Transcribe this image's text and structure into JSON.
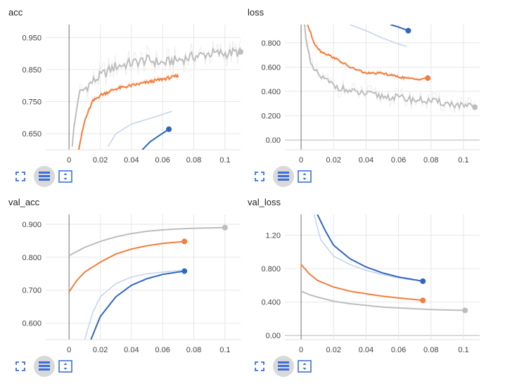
{
  "chart_data": [
    {
      "type": "line",
      "title": "acc",
      "xlim": [
        -0.015,
        0.11
      ],
      "ylim": [
        0.6,
        0.99
      ],
      "xticks": [
        0,
        0.02,
        0.04,
        0.06,
        0.08,
        0.1
      ],
      "xtick_labels": [
        "0",
        "0.02",
        "0.04",
        "0.06",
        "0.08",
        "0.1"
      ],
      "yticks": [
        0.65,
        0.75,
        0.85,
        0.95
      ],
      "ytick_labels": [
        "0.650",
        "0.750",
        "0.850",
        "0.950"
      ],
      "series": [
        {
          "color": "#bdbdbd",
          "noise": 0.045,
          "end_marker": true,
          "x": [
            0.002,
            0.006,
            0.012,
            0.02,
            0.03,
            0.04,
            0.05,
            0.06,
            0.07,
            0.08,
            0.09,
            0.1,
            0.11
          ],
          "y": [
            0.62,
            0.77,
            0.8,
            0.83,
            0.86,
            0.87,
            0.88,
            0.87,
            0.88,
            0.89,
            0.9,
            0.9,
            0.905
          ]
        },
        {
          "color": "#f57c3b",
          "noise": 0.012,
          "end_marker": false,
          "x": [
            0.006,
            0.01,
            0.015,
            0.02,
            0.025,
            0.03,
            0.04,
            0.05,
            0.06,
            0.07
          ],
          "y": [
            0.6,
            0.69,
            0.75,
            0.77,
            0.78,
            0.79,
            0.8,
            0.81,
            0.82,
            0.83
          ]
        },
        {
          "color": "#c7d4ee",
          "noise": 0,
          "end_marker": false,
          "x": [
            0.025,
            0.03,
            0.04,
            0.05,
            0.06,
            0.066
          ],
          "y": [
            0.61,
            0.65,
            0.68,
            0.695,
            0.71,
            0.72
          ]
        },
        {
          "color": "#3065c2",
          "noise": 0,
          "end_marker": true,
          "x": [
            0.047,
            0.052,
            0.058,
            0.064
          ],
          "y": [
            0.6,
            0.625,
            0.645,
            0.664
          ]
        }
      ]
    },
    {
      "type": "line",
      "title": "loss",
      "xlim": [
        -0.01,
        0.11
      ],
      "ylim": [
        -0.08,
        0.95
      ],
      "xticks": [
        0,
        0.02,
        0.04,
        0.06,
        0.08,
        0.1
      ],
      "xtick_labels": [
        "0",
        "0.02",
        "0.04",
        "0.06",
        "0.08",
        "0.1"
      ],
      "yticks": [
        0,
        0.2,
        0.4,
        0.6,
        0.8
      ],
      "ytick_labels": [
        "0.00",
        "0.200",
        "0.400",
        "0.600",
        "0.800"
      ],
      "series": [
        {
          "color": "#bdbdbd",
          "noise": 0.08,
          "end_marker": true,
          "x": [
            0.002,
            0.006,
            0.012,
            0.02,
            0.03,
            0.04,
            0.05,
            0.06,
            0.07,
            0.08,
            0.09,
            0.1,
            0.107
          ],
          "y": [
            0.95,
            0.6,
            0.52,
            0.45,
            0.4,
            0.38,
            0.36,
            0.35,
            0.33,
            0.32,
            0.3,
            0.28,
            0.27
          ]
        },
        {
          "color": "#f57c3b",
          "noise": 0.02,
          "end_marker": true,
          "x": [
            0.004,
            0.008,
            0.012,
            0.02,
            0.03,
            0.04,
            0.05,
            0.06,
            0.07,
            0.078
          ],
          "y": [
            0.95,
            0.8,
            0.73,
            0.68,
            0.6,
            0.55,
            0.55,
            0.52,
            0.5,
            0.51
          ]
        },
        {
          "color": "#c7d4ee",
          "noise": 0,
          "end_marker": false,
          "x": [
            0.03,
            0.04,
            0.05,
            0.06,
            0.065
          ],
          "y": [
            0.95,
            0.9,
            0.84,
            0.79,
            0.77
          ]
        },
        {
          "color": "#3065c2",
          "noise": 0,
          "end_marker": true,
          "x": [
            0.055,
            0.06,
            0.066
          ],
          "y": [
            0.95,
            0.93,
            0.9
          ]
        }
      ]
    },
    {
      "type": "line",
      "title": "val_acc",
      "xlim": [
        -0.015,
        0.11
      ],
      "ylim": [
        0.55,
        0.93
      ],
      "xticks": [
        0,
        0.02,
        0.04,
        0.06,
        0.08,
        0.1
      ],
      "xtick_labels": [
        "0",
        "0.02",
        "0.04",
        "0.06",
        "0.08",
        "0.1"
      ],
      "yticks": [
        0.6,
        0.7,
        0.8,
        0.9
      ],
      "ytick_labels": [
        "0.600",
        "0.700",
        "0.800",
        "0.900"
      ],
      "series": [
        {
          "color": "#bdbdbd",
          "noise": 0,
          "end_marker": true,
          "x": [
            0,
            0.01,
            0.02,
            0.03,
            0.04,
            0.05,
            0.06,
            0.07,
            0.08,
            0.09,
            0.1
          ],
          "y": [
            0.805,
            0.83,
            0.848,
            0.862,
            0.872,
            0.879,
            0.883,
            0.886,
            0.888,
            0.889,
            0.89
          ]
        },
        {
          "color": "#f57c3b",
          "noise": 0,
          "end_marker": true,
          "x": [
            0,
            0.005,
            0.01,
            0.02,
            0.03,
            0.04,
            0.05,
            0.06,
            0.074
          ],
          "y": [
            0.695,
            0.73,
            0.755,
            0.785,
            0.81,
            0.825,
            0.835,
            0.842,
            0.848
          ]
        },
        {
          "color": "#c7d4ee",
          "noise": 0,
          "end_marker": false,
          "x": [
            0.01,
            0.015,
            0.02,
            0.03,
            0.04,
            0.05,
            0.06,
            0.072
          ],
          "y": [
            0.55,
            0.63,
            0.68,
            0.72,
            0.74,
            0.75,
            0.755,
            0.76
          ]
        },
        {
          "color": "#3065c2",
          "noise": 0,
          "end_marker": true,
          "x": [
            0.014,
            0.02,
            0.03,
            0.04,
            0.05,
            0.06,
            0.074
          ],
          "y": [
            0.55,
            0.62,
            0.68,
            0.715,
            0.735,
            0.748,
            0.758
          ]
        }
      ]
    },
    {
      "type": "line",
      "title": "val_loss",
      "xlim": [
        -0.01,
        0.11
      ],
      "ylim": [
        -0.05,
        1.45
      ],
      "xticks": [
        0,
        0.02,
        0.04,
        0.06,
        0.08,
        0.1
      ],
      "xtick_labels": [
        "0",
        "0.02",
        "0.04",
        "0.06",
        "0.08",
        "0.1"
      ],
      "yticks": [
        0,
        0.4,
        0.8,
        1.2
      ],
      "ytick_labels": [
        "0.00",
        "0.400",
        "0.800",
        "1.20"
      ],
      "series": [
        {
          "color": "#bdbdbd",
          "noise": 0,
          "end_marker": true,
          "x": [
            0,
            0.005,
            0.01,
            0.02,
            0.03,
            0.04,
            0.05,
            0.06,
            0.07,
            0.08,
            0.09,
            0.101
          ],
          "y": [
            0.53,
            0.49,
            0.46,
            0.41,
            0.38,
            0.36,
            0.34,
            0.33,
            0.32,
            0.31,
            0.305,
            0.3
          ]
        },
        {
          "color": "#f57c3b",
          "noise": 0,
          "end_marker": true,
          "x": [
            0,
            0.005,
            0.01,
            0.02,
            0.03,
            0.04,
            0.05,
            0.06,
            0.075
          ],
          "y": [
            0.85,
            0.74,
            0.66,
            0.58,
            0.53,
            0.5,
            0.47,
            0.45,
            0.42
          ]
        },
        {
          "color": "#c7d4ee",
          "noise": 0,
          "end_marker": false,
          "x": [
            0.008,
            0.012,
            0.02,
            0.03,
            0.04,
            0.05,
            0.06,
            0.07
          ],
          "y": [
            1.45,
            1.15,
            0.95,
            0.85,
            0.78,
            0.73,
            0.69,
            0.66
          ]
        },
        {
          "color": "#3065c2",
          "noise": 0,
          "end_marker": true,
          "x": [
            0.01,
            0.015,
            0.02,
            0.03,
            0.04,
            0.05,
            0.06,
            0.075
          ],
          "y": [
            1.45,
            1.25,
            1.08,
            0.92,
            0.82,
            0.75,
            0.7,
            0.65
          ]
        }
      ]
    }
  ]
}
